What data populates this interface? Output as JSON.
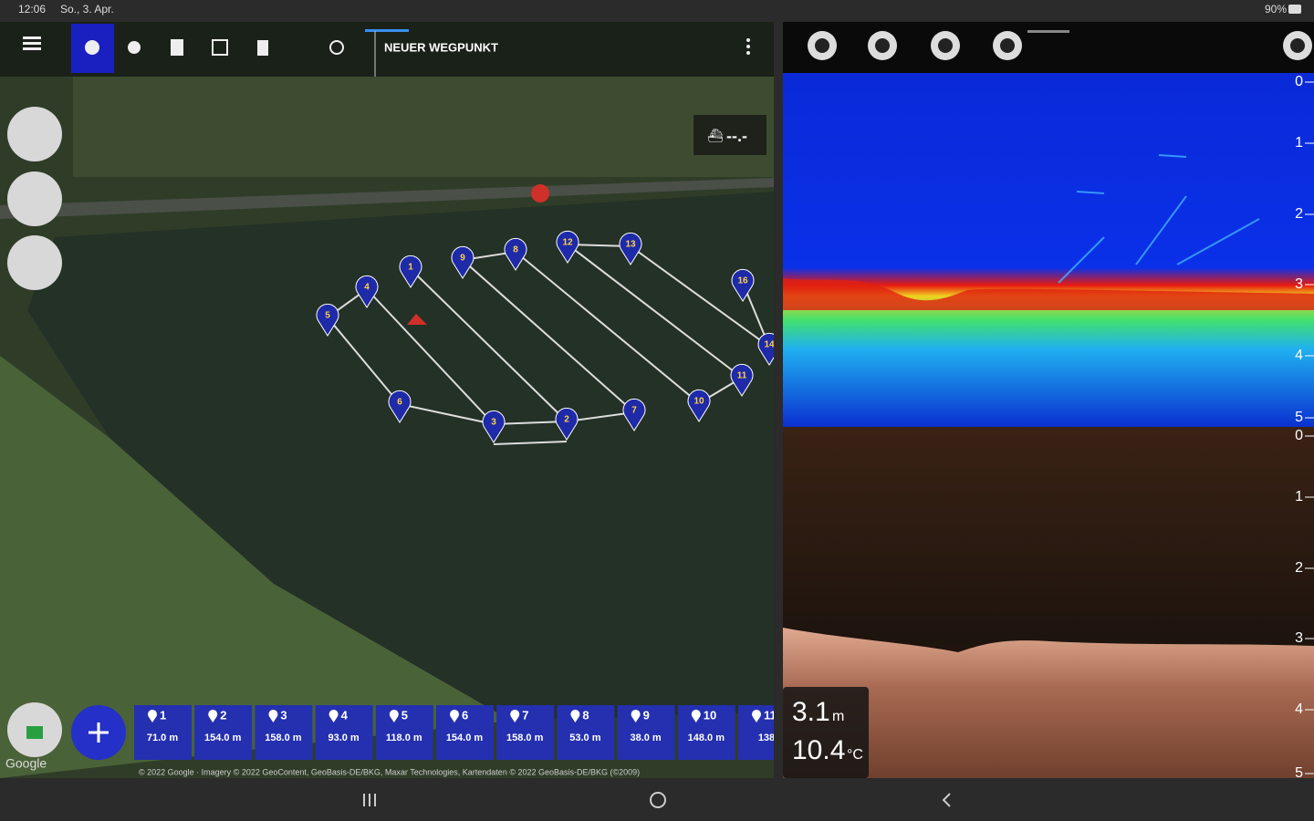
{
  "status_bar": {
    "time": "12:06",
    "date": "So., 3. Apr.",
    "battery": "90%"
  },
  "map_toolbar": {
    "new_waypoint": "NEUER WEGPUNKT"
  },
  "boat_status": "--.-",
  "map": {
    "pins": [
      "5",
      "4",
      "1",
      "9",
      "8",
      "12",
      "13",
      "16",
      "14",
      "11",
      "10",
      "7",
      "2",
      "3",
      "6"
    ],
    "google": "Google",
    "attribution": "© 2022 Google · Imagery © 2022 GeoContent, GeoBasis-DE/BKG, Maxar Technologies, Kartendaten © 2022 GeoBasis-DE/BKG (©2009)"
  },
  "waypoint_list": [
    {
      "number": "1",
      "distance": "71.0 m"
    },
    {
      "number": "2",
      "distance": "154.0 m"
    },
    {
      "number": "3",
      "distance": "158.0 m"
    },
    {
      "number": "4",
      "distance": "93.0 m"
    },
    {
      "number": "5",
      "distance": "118.0 m"
    },
    {
      "number": "6",
      "distance": "154.0 m"
    },
    {
      "number": "7",
      "distance": "158.0 m"
    },
    {
      "number": "8",
      "distance": "53.0 m"
    },
    {
      "number": "9",
      "distance": "38.0 m"
    },
    {
      "number": "10",
      "distance": "148.0 m"
    },
    {
      "number": "11",
      "distance": "138"
    }
  ],
  "sonar": {
    "upper_scale": [
      "0",
      "1",
      "2",
      "3",
      "4",
      "5"
    ],
    "lower_scale": [
      "0",
      "1",
      "2",
      "3",
      "4",
      "5"
    ],
    "depth": "3.1",
    "depth_unit": "m",
    "temperature": "10.4",
    "temperature_unit": "°C"
  }
}
